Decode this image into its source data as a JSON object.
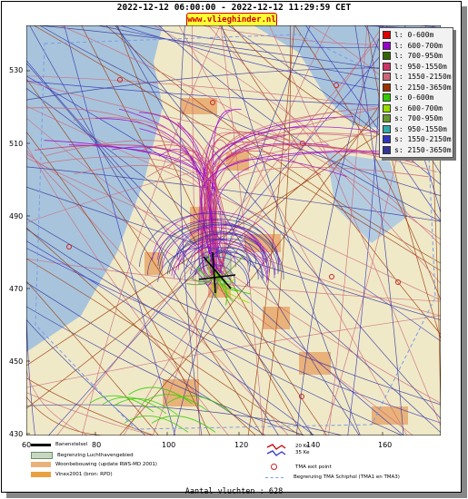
{
  "header": {
    "period": "2022-12-12 06:00:00 - 2022-12-12 11:29:59 CET",
    "brand": "www.vlieghinder.nl"
  },
  "axes": {
    "y_ticks": [
      "530",
      "510",
      "490",
      "470",
      "450",
      "430"
    ],
    "x_ticks": [
      "60",
      "80",
      "100",
      "120",
      "140",
      "160"
    ]
  },
  "legend": [
    {
      "label": "l: 0-600m",
      "color": "#dd0000"
    },
    {
      "label": "l: 600-700m",
      "color": "#9900cc"
    },
    {
      "label": "l: 700-950m",
      "color": "#336600"
    },
    {
      "label": "l: 950-1550m",
      "color": "#cc3366"
    },
    {
      "label": "l: 1550-2150m",
      "color": "#cc6677"
    },
    {
      "label": "l: 2150-3650m",
      "color": "#993300"
    },
    {
      "label": "s: 0-600m",
      "color": "#33cc00"
    },
    {
      "label": "s: 600-700m",
      "color": "#99dd00"
    },
    {
      "label": "s: 700-950m",
      "color": "#669933"
    },
    {
      "label": "s: 950-1550m",
      "color": "#33aaaa"
    },
    {
      "label": "s: 1550-2150m",
      "color": "#3333bb"
    },
    {
      "label": "s: 2150-3650m",
      "color": "#333399"
    }
  ],
  "map_legend": {
    "runway": "Banenstelsel",
    "airport_boundary": "Begrenzing Luchthavengebied",
    "housing": "Woonbebouwing (update RWS-MD 2001)",
    "vinex": "Vinex2001 (bron: RPD)",
    "noise_20": "20 Ke",
    "noise_35": "35 Ke",
    "tma_exit": "TMA exit point",
    "tma_boundary": "Begrenzing TMA Schiphol  (TMA1 en TMA3)"
  },
  "footer": {
    "flights": "Aantal vluchten : 628"
  },
  "colors": {
    "sea": "#a8c4dc",
    "land": "#efe9c8",
    "urban": "#e9b27a",
    "airport": "#c8d8c0",
    "tma": "#7b9be8"
  }
}
